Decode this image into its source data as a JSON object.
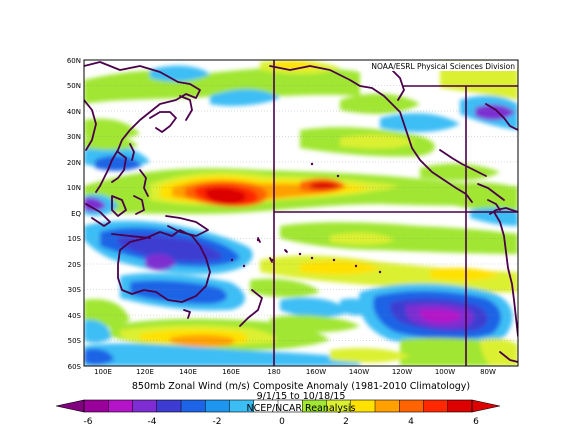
{
  "map": {
    "credit": "NOAA/ESRL Physical Sciences Division",
    "caption_line1": "850mb Zonal Wind (m/s) Composite Anomaly (1981-2010 Climatology)",
    "caption_line2": "9/1/15 to 10/18/15",
    "caption_line3": "NCEP/NCAR Reanalysis",
    "lat_labels": [
      "60N",
      "50N",
      "40N",
      "30N",
      "20N",
      "10N",
      "EQ",
      "10S",
      "20S",
      "30S",
      "40S",
      "50S",
      "60S"
    ],
    "lon_labels": [
      "100E",
      "120E",
      "140E",
      "160E",
      "180",
      "160W",
      "140W",
      "120W",
      "100W",
      "80W"
    ],
    "colorbar": {
      "tick_labels": [
        "-6",
        "-4",
        "-2",
        "0",
        "2",
        "4",
        "6"
      ],
      "colors": [
        "#9a009a",
        "#b414c8",
        "#7d2dd2",
        "#3c3cd2",
        "#1e64e6",
        "#1e96f0",
        "#3cbef5",
        "#ffffff",
        "#ffffff",
        "#a0e632",
        "#dcf032",
        "#ffe100",
        "#ffa000",
        "#ff6400",
        "#ff2800",
        "#dc0000"
      ]
    }
  }
}
